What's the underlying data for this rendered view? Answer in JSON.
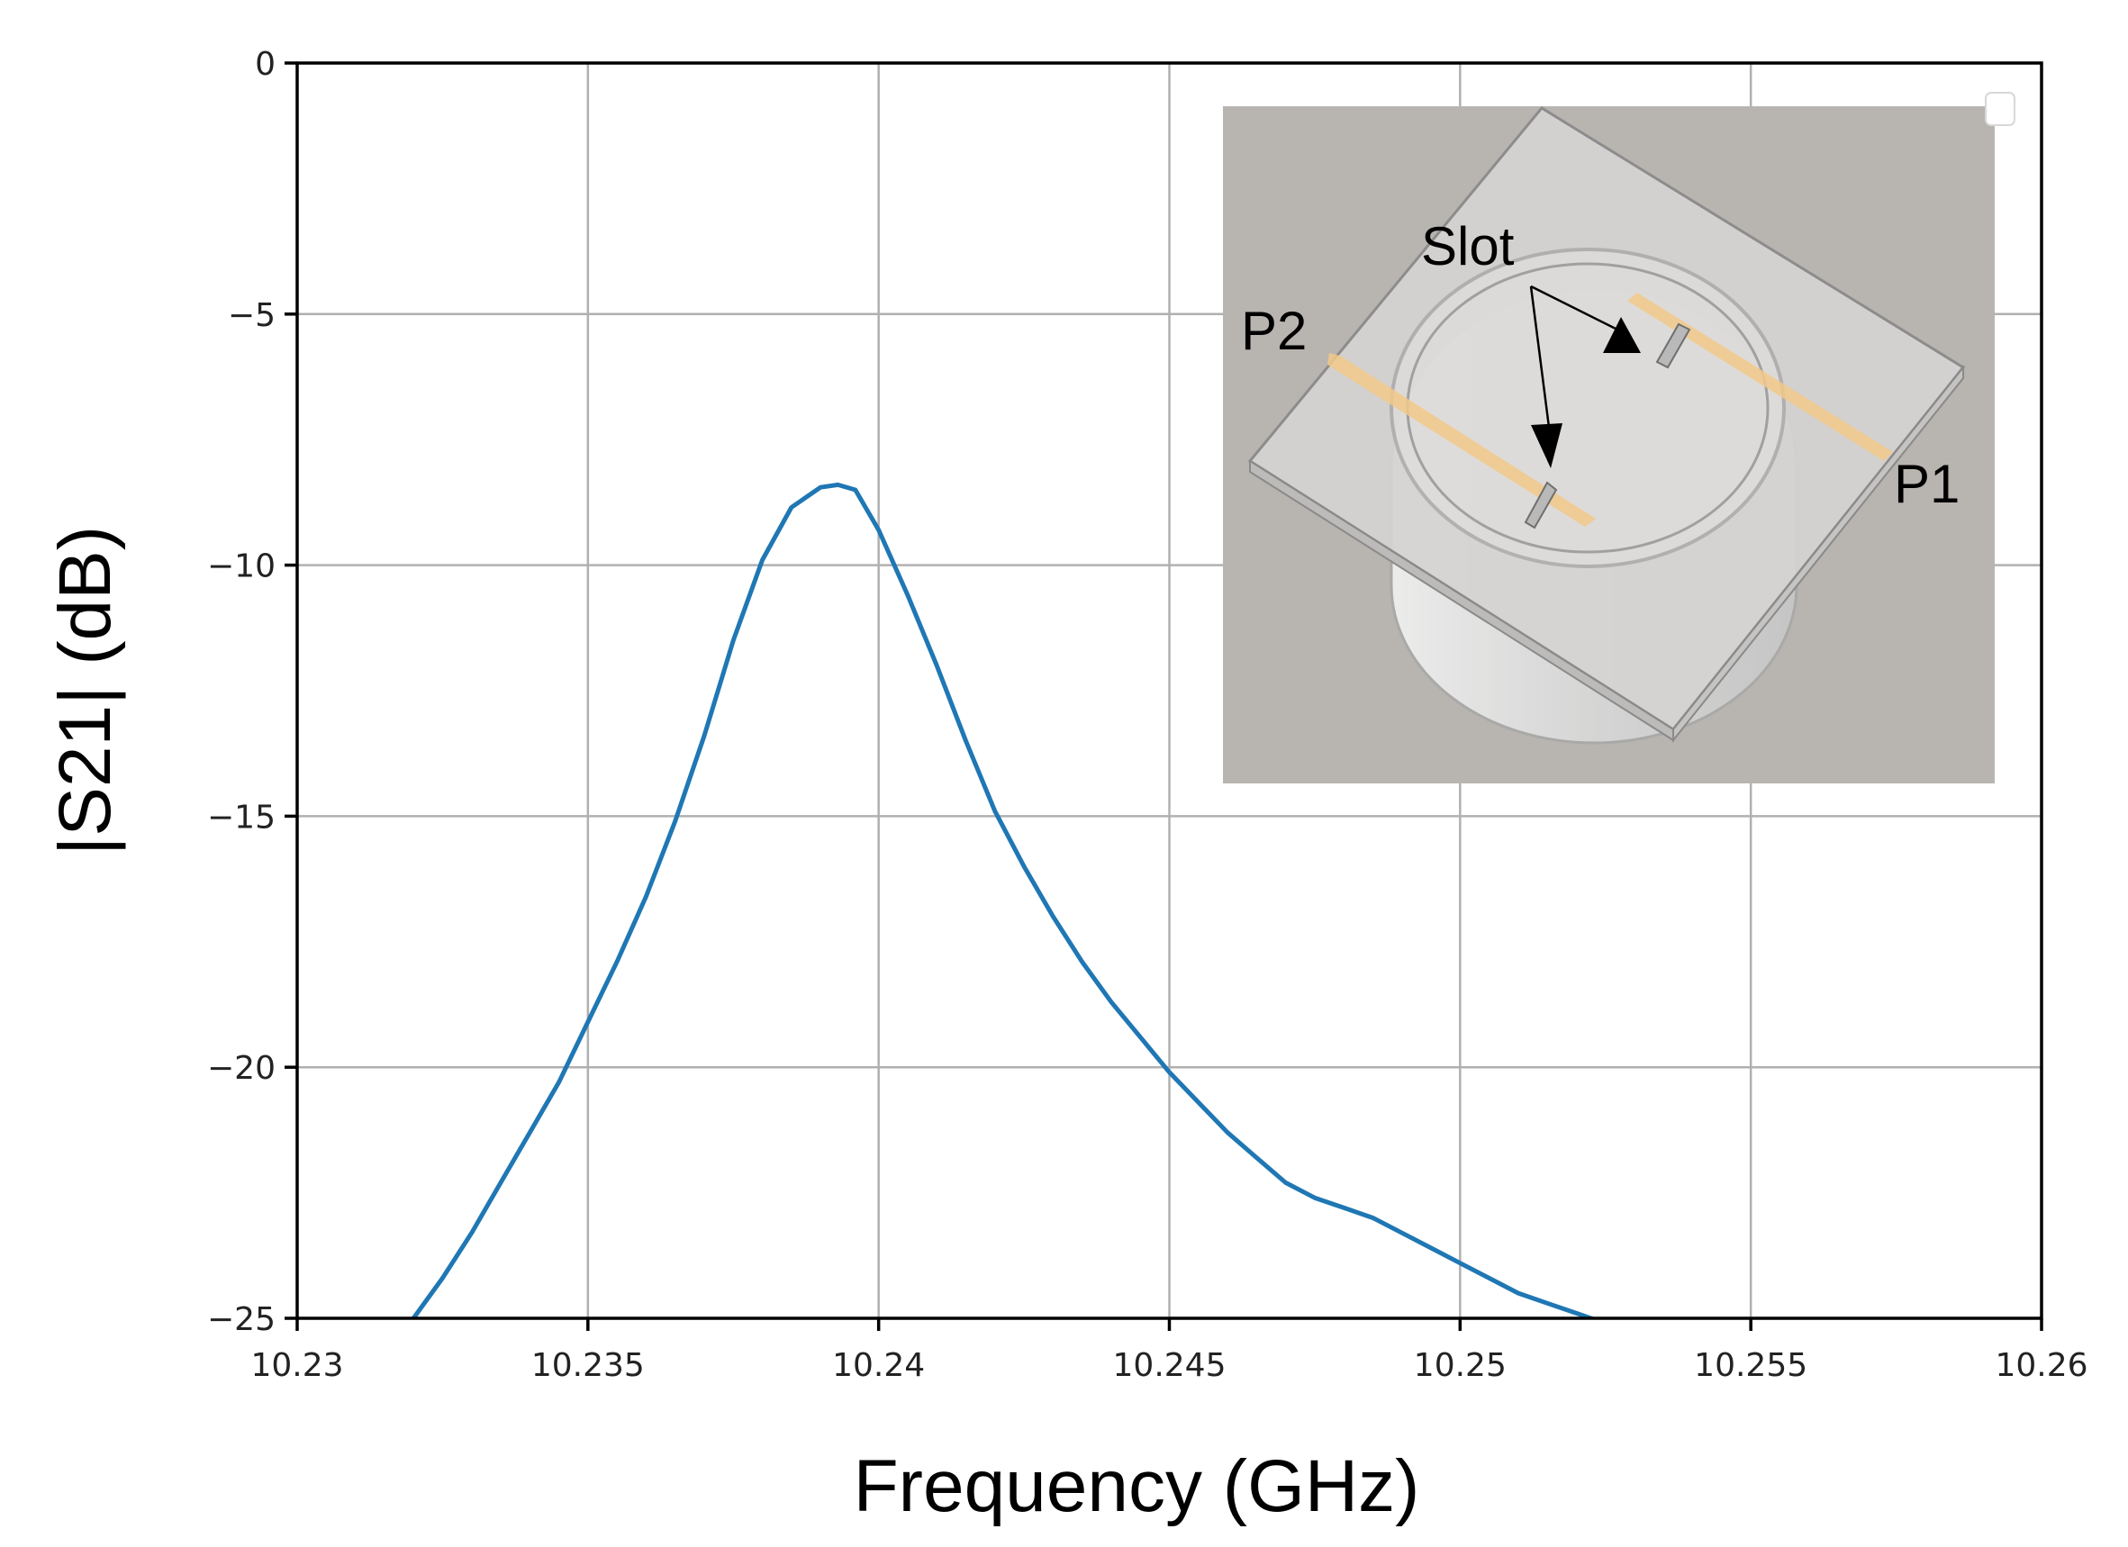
{
  "chart_data": {
    "type": "line",
    "title": "",
    "xlabel": "Frequency (GHz)",
    "ylabel": "|S21| (dB)",
    "xlim": [
      10.23,
      10.26
    ],
    "ylim": [
      -25,
      0
    ],
    "x_ticks": [
      10.23,
      10.235,
      10.24,
      10.245,
      10.25,
      10.255,
      10.26
    ],
    "x_tick_labels": [
      "10.23",
      "10.235",
      "10.24",
      "10.245",
      "10.25",
      "10.255",
      "10.26"
    ],
    "y_ticks": [
      0,
      -5,
      -10,
      -15,
      -20,
      -25
    ],
    "y_tick_labels": [
      "0",
      "−5",
      "−10",
      "−15",
      "−20",
      "−25"
    ],
    "grid": true,
    "series": [
      {
        "color": "#1f77b4",
        "x": [
          10.232,
          10.2325,
          10.233,
          10.2335,
          10.234,
          10.2345,
          10.235,
          10.2355,
          10.236,
          10.2365,
          10.237,
          10.2375,
          10.238,
          10.2385,
          10.239,
          10.2393,
          10.2396,
          10.24,
          10.2405,
          10.241,
          10.2415,
          10.242,
          10.2425,
          10.243,
          10.2435,
          10.244,
          10.2445,
          10.245,
          10.2455,
          10.246,
          10.2465,
          10.247,
          10.2475,
          10.248,
          10.2485,
          10.249,
          10.2495,
          10.25,
          10.2505,
          10.251,
          10.2515,
          10.252,
          10.2525
        ],
        "y": [
          -25.0,
          -24.2,
          -23.3,
          -22.3,
          -21.3,
          -20.3,
          -19.1,
          -17.9,
          -16.6,
          -15.1,
          -13.4,
          -11.5,
          -9.9,
          -8.85,
          -8.45,
          -8.4,
          -8.5,
          -9.3,
          -10.6,
          -12.0,
          -13.5,
          -14.9,
          -16.0,
          -17.0,
          -17.9,
          -18.7,
          -19.4,
          -20.1,
          -20.7,
          -21.3,
          -21.8,
          -22.3,
          -22.6,
          -22.8,
          -23.0,
          -23.3,
          -23.6,
          -23.9,
          -24.2,
          -24.5,
          -24.7,
          -24.9,
          -25.1
        ]
      }
    ],
    "inset": {
      "labels": {
        "slot": "Slot",
        "p2": "P2",
        "p1": "P1"
      }
    }
  }
}
